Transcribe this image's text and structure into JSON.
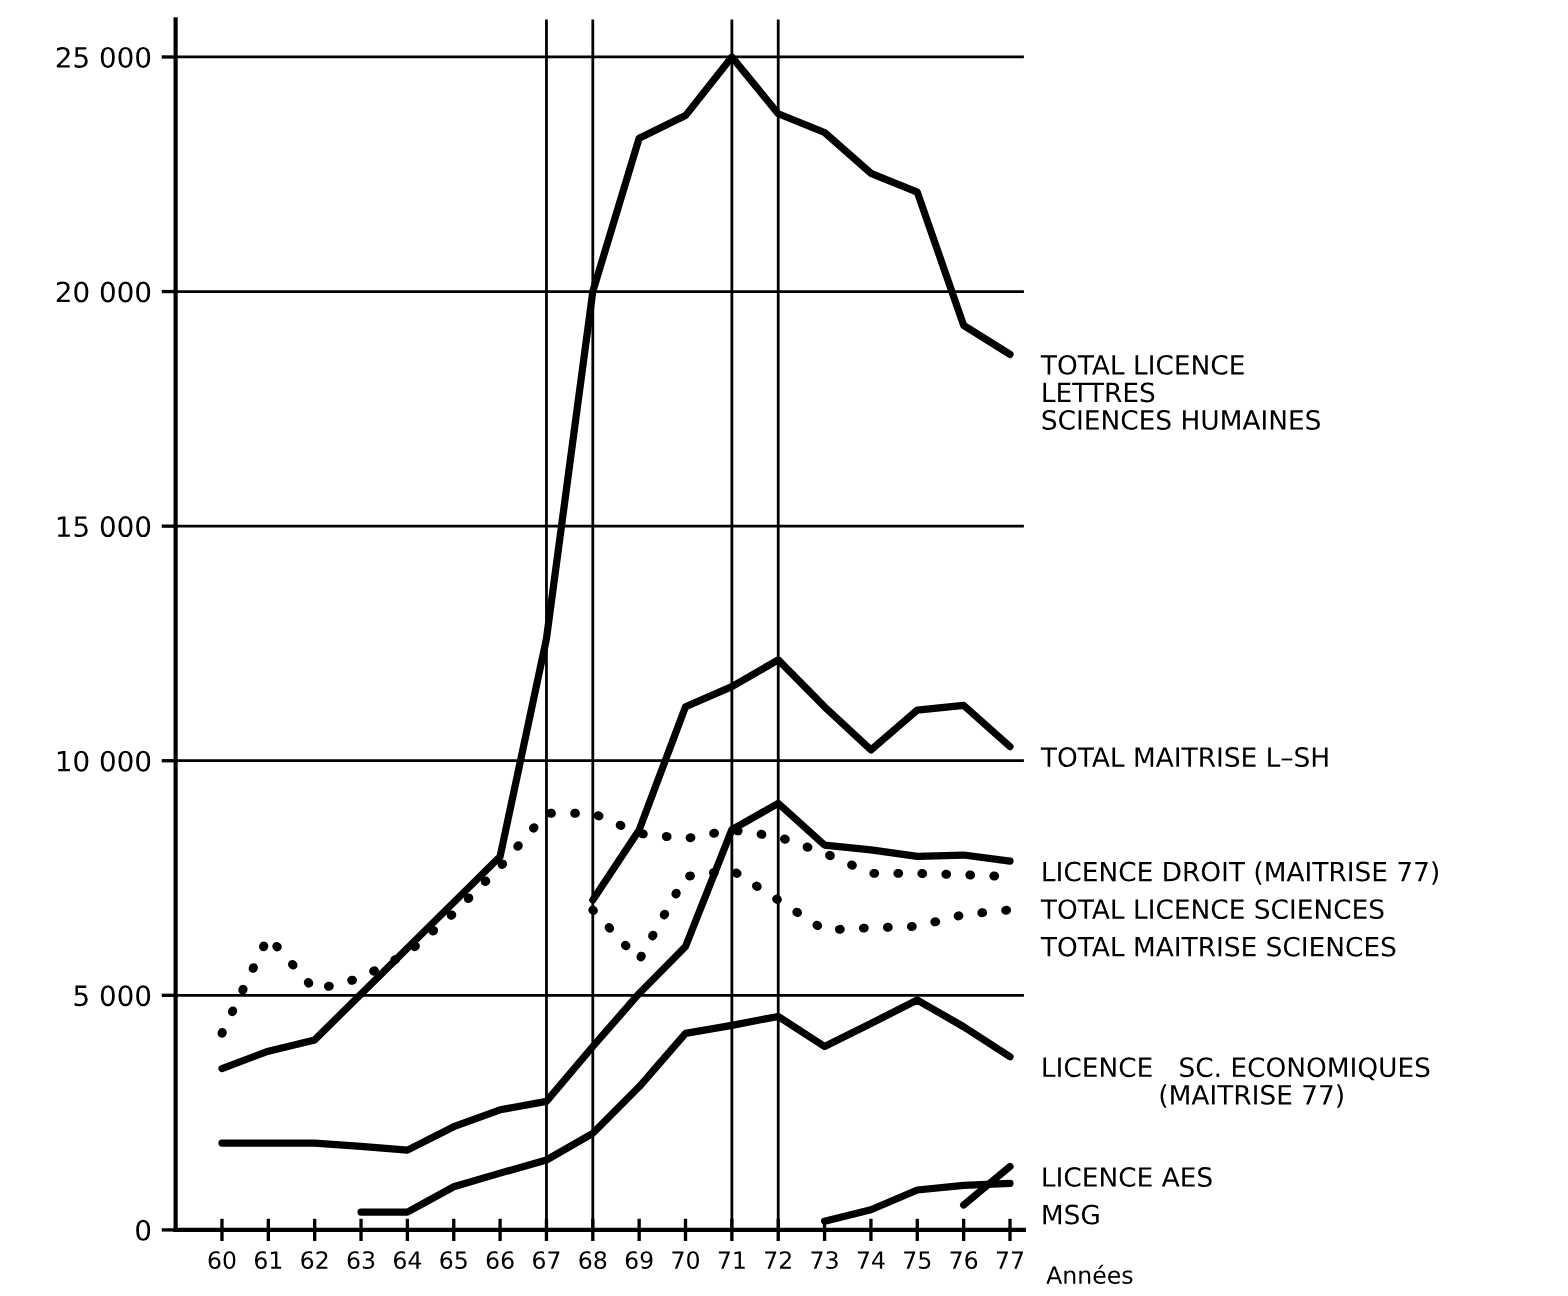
{
  "chart_data": {
    "type": "line",
    "xlabel": "Années",
    "xlim": [
      59,
      77.3
    ],
    "ylim": [
      0,
      25800
    ],
    "xticks": [
      60,
      61,
      62,
      63,
      64,
      65,
      66,
      67,
      68,
      69,
      70,
      71,
      72,
      73,
      74,
      75,
      76,
      77
    ],
    "yticks": [
      0,
      {
        "value": 5000,
        "label": "5 000"
      },
      {
        "value": 10000,
        "label": "10 000"
      },
      {
        "value": 15000,
        "label": "15 000"
      },
      {
        "value": 20000,
        "label": "20 000"
      },
      {
        "value": 25000,
        "label": "25 000"
      }
    ],
    "grid": "y",
    "legend": false,
    "marker": "none",
    "ref_lines": [
      {
        "axis": "x",
        "value": 67,
        "label": null,
        "color": "#000000"
      },
      {
        "axis": "x",
        "value": 68,
        "label": null,
        "color": "#000000"
      },
      {
        "axis": "x",
        "value": 71,
        "label": null,
        "color": "#000000"
      },
      {
        "axis": "x",
        "value": 72,
        "label": null,
        "color": "#000000"
      }
    ],
    "series": [
      {
        "name": "TOTAL LICENCE\nLETTRES\nSCIENCES HUMAINES",
        "color": "#000000",
        "line_style": "solid",
        "x": [
          60,
          61,
          62,
          66,
          67,
          68,
          69,
          70,
          71,
          72,
          73,
          74,
          75,
          76,
          77
        ],
        "values": [
          3440,
          3810,
          4050,
          7960,
          12600,
          20000,
          23270,
          23750,
          25000,
          23790,
          23390,
          22520,
          22120,
          19280,
          18660
        ]
      },
      {
        "name": "TOTAL MAITRISE L–SH",
        "color": "#000000",
        "line_style": "solid",
        "x": [
          68,
          69,
          70,
          71,
          72,
          73,
          74,
          75,
          76,
          77
        ],
        "values": [
          7030,
          8525,
          11150,
          11580,
          12150,
          11150,
          10230,
          11080,
          11180,
          10300
        ]
      },
      {
        "name": "LICENCE DROIT (MAITRISE 77)",
        "color": "#000000",
        "line_style": "solid",
        "x": [
          60,
          61,
          62,
          63,
          64,
          65,
          66,
          67,
          68,
          69,
          70,
          71,
          72,
          73,
          74,
          75,
          76,
          77
        ],
        "values": [
          1850,
          1850,
          1850,
          1780,
          1700,
          2200,
          2560,
          2740,
          3910,
          5040,
          6040,
          8530,
          9090,
          8200,
          8100,
          7960,
          7990,
          7860
        ]
      },
      {
        "name": "TOTAL LICENCE SCIENCES",
        "color": "#000000",
        "line_style": "dotted",
        "x": [
          60,
          61,
          62,
          63,
          64,
          65,
          66,
          67,
          68,
          69,
          70,
          71,
          72,
          73,
          74,
          75,
          76,
          77
        ],
        "values": [
          4190,
          6250,
          5115,
          5370,
          5900,
          6750,
          7740,
          8880,
          8880,
          8450,
          8340,
          8525,
          8380,
          8030,
          7600,
          7600,
          7570,
          7530
        ]
      },
      {
        "name": "TOTAL MAITRISE SCIENCES",
        "color": "#000000",
        "line_style": "dotted",
        "x": [
          68,
          69,
          70,
          71,
          72,
          73,
          74,
          75,
          76,
          77
        ],
        "values": [
          6820,
          5750,
          7530,
          7670,
          7030,
          6390,
          6440,
          6470,
          6720,
          6820
        ]
      },
      {
        "name": "LICENCE   SC. ECONOMIQUES\n              (MAITRISE 77)",
        "color": "#000000",
        "line_style": "solid",
        "x": [
          63,
          64,
          65,
          66,
          67,
          68,
          69,
          70,
          71,
          72,
          73,
          74,
          75,
          76,
          77
        ],
        "values": [
          380,
          380,
          920,
          1210,
          1490,
          2060,
          3050,
          4190,
          4360,
          4550,
          3910,
          4400,
          4900,
          4330,
          3690
        ]
      },
      {
        "name": "LICENCE AES",
        "color": "#000000",
        "line_style": "solid",
        "x": [
          76,
          77
        ],
        "values": [
          530,
          1350
        ]
      },
      {
        "name": "MSG",
        "color": "#000000",
        "line_style": "solid",
        "x": [
          73,
          74,
          75,
          76,
          77
        ],
        "values": [
          185,
          430,
          850,
          950,
          990
        ]
      }
    ]
  }
}
